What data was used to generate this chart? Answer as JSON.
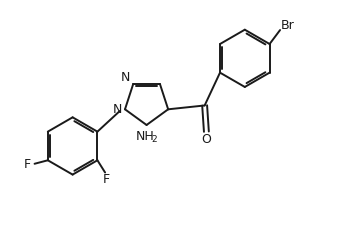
{
  "background": "#ffffff",
  "line_color": "#1a1a1a",
  "lw": 1.4,
  "xlim": [
    0,
    10
  ],
  "ylim": [
    0,
    6.6
  ],
  "figsize": [
    3.56,
    2.36
  ],
  "dpi": 100
}
